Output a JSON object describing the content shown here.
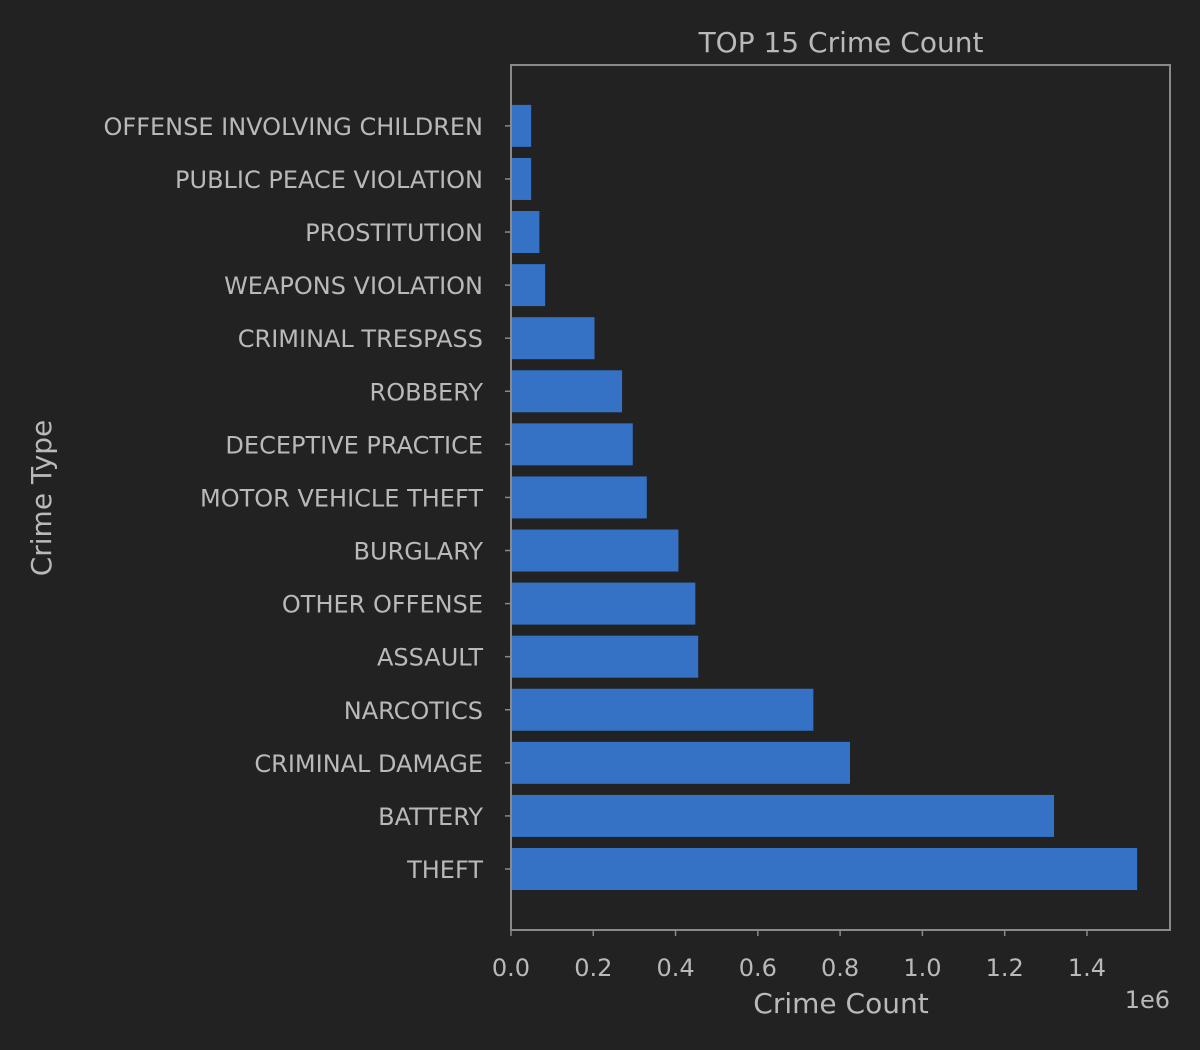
{
  "chart_data": {
    "type": "bar",
    "orientation": "horizontal",
    "title": "TOP 15 Crime Count",
    "xlabel": "Crime Count",
    "ylabel": "Crime Type",
    "offset_label": "1e6",
    "xlim": [
      0,
      1.6
    ],
    "xticks": [
      "0.0",
      "0.2",
      "0.4",
      "0.6",
      "0.8",
      "1.0",
      "1.2",
      "1.4"
    ],
    "grid": false,
    "categories": [
      "THEFT",
      "BATTERY",
      "CRIMINAL DAMAGE",
      "NARCOTICS",
      "ASSAULT",
      "OTHER OFFENSE",
      "BURGLARY",
      "MOTOR VEHICLE THEFT",
      "DECEPTIVE PRACTICE",
      "ROBBERY",
      "CRIMINAL TRESPASS",
      "WEAPONS VIOLATION",
      "PROSTITUTION",
      "PUBLIC PEACE VIOLATION",
      "OFFENSE INVOLVING CHILDREN"
    ],
    "values": [
      1.522,
      1.32,
      0.824,
      0.735,
      0.455,
      0.448,
      0.407,
      0.33,
      0.296,
      0.27,
      0.203,
      0.083,
      0.069,
      0.049,
      0.049
    ],
    "colors": {
      "bar": "#3572c6",
      "background": "#222222",
      "text": "#b9b9b9",
      "frame": "#8a8a8a"
    }
  }
}
